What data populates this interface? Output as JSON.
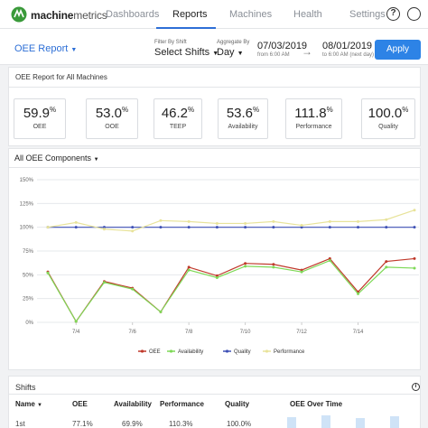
{
  "nav": {
    "brand_bold": "machine",
    "brand_light": "metrics",
    "items": [
      "Dashboards",
      "Reports",
      "Machines",
      "Health",
      "Settings"
    ],
    "help_symbol": "?",
    "user_icon": "user-circle-icon"
  },
  "toolbar": {
    "report_label": "OEE Report",
    "shift_label": "Filter By Shift",
    "shift_value": "Select Shifts",
    "aggregate_label": "Aggregate By",
    "aggregate_value": "Day",
    "start_date": "07/03/2019",
    "start_sub": "from 6:00 AM",
    "end_date": "08/01/2019",
    "end_sub": "to 6:00 AM (next day)",
    "apply_label": "Apply"
  },
  "summary": {
    "title": "OEE Report for All Machines",
    "metrics": [
      {
        "value": "59.9",
        "unit": "%",
        "label": "OEE"
      },
      {
        "value": "53.0",
        "unit": "%",
        "label": "OOE"
      },
      {
        "value": "46.2",
        "unit": "%",
        "label": "TEEP"
      },
      {
        "value": "53.6",
        "unit": "%",
        "label": "Availability"
      },
      {
        "value": "111.8",
        "unit": "%",
        "label": "Performance"
      },
      {
        "value": "100.0",
        "unit": "%",
        "label": "Quality"
      }
    ]
  },
  "chart_header": "All OEE Components",
  "chart_data": {
    "type": "line",
    "x": [
      "7/3",
      "7/4",
      "7/5",
      "7/6",
      "7/7",
      "7/8",
      "7/9",
      "7/10",
      "7/11",
      "7/12",
      "7/13",
      "7/14",
      "7/15",
      "7/16"
    ],
    "x_tick_labels": [
      "7/4",
      "7/6",
      "7/8",
      "7/10",
      "7/12",
      "7/14"
    ],
    "y_ticks": [
      "0%",
      "25%",
      "50%",
      "75%",
      "100%",
      "125%",
      "150%"
    ],
    "ylim": [
      0,
      150
    ],
    "legend_position": "bottom",
    "grid": true,
    "series": [
      {
        "name": "OEE",
        "color": "#c0392b",
        "values": [
          53,
          1,
          43,
          36,
          11,
          58,
          49,
          62,
          61,
          55,
          67,
          32,
          64,
          67
        ]
      },
      {
        "name": "Availability",
        "color": "#7ed957",
        "values": [
          52,
          1,
          42,
          35,
          11,
          55,
          47,
          59,
          58,
          53,
          65,
          30,
          58,
          57
        ]
      },
      {
        "name": "Quality",
        "color": "#3f51b5",
        "values": [
          100,
          100,
          100,
          100,
          100,
          100,
          100,
          100,
          100,
          100,
          100,
          100,
          100,
          100
        ]
      },
      {
        "name": "Performance",
        "color": "#e8e39a",
        "values": [
          100,
          105,
          98,
          96,
          107,
          106,
          104,
          104,
          106,
          102,
          106,
          106,
          108,
          118
        ]
      }
    ]
  },
  "shifts": {
    "title": "Shifts",
    "columns": [
      "Name",
      "OEE",
      "Availability",
      "Performance",
      "Quality",
      "OEE Over Time"
    ],
    "first_row": [
      "1st",
      "77.1%",
      "69.9%",
      "110.3%",
      "100.0%"
    ]
  }
}
